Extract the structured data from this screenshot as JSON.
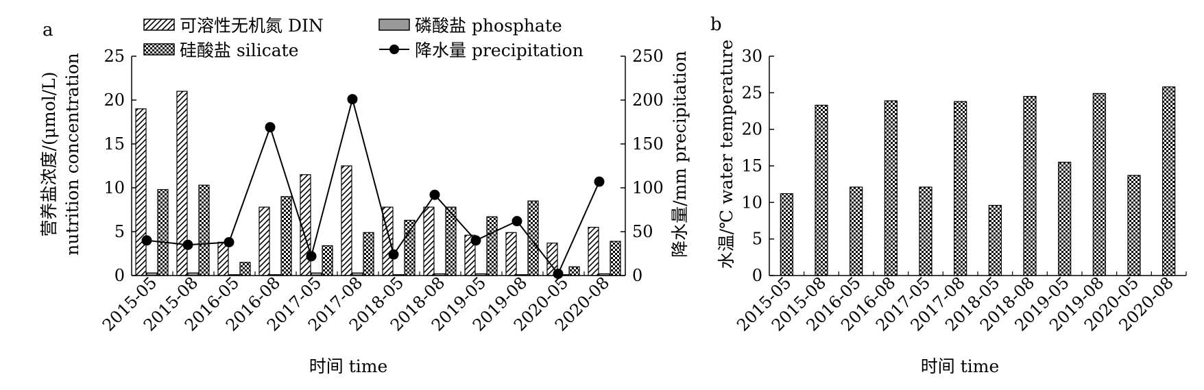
{
  "chart_data": [
    {
      "panel_label": "a",
      "type": "bar",
      "categories": [
        "2015-05",
        "2015-08",
        "2016-05",
        "2016-08",
        "2017-05",
        "2017-08",
        "2018-05",
        "2018-08",
        "2019-05",
        "2019-08",
        "2020-05",
        "2020-08"
      ],
      "xlabel": "时间 time",
      "ylabel_line1": "营养盐浓度/(μmol/L)",
      "ylabel_line2": "nutrition concentration",
      "ylabel_right": "降水量/mm precipitation",
      "ylim": [
        0,
        25
      ],
      "yticks": [
        0,
        5,
        10,
        15,
        20,
        25
      ],
      "ylim_right": [
        0,
        250
      ],
      "yticks_right": [
        0,
        50,
        100,
        150,
        200,
        250
      ],
      "series": [
        {
          "name": "可溶性无机氮 DIN",
          "kind": "bar",
          "pattern": "diagonal-hatch",
          "values": [
            19.0,
            21.0,
            3.8,
            7.8,
            11.5,
            12.5,
            7.8,
            7.8,
            4.6,
            4.9,
            3.7,
            5.5
          ]
        },
        {
          "name": "磷酸盐 phosphate",
          "kind": "bar",
          "pattern": "solid-gray",
          "values": [
            0.3,
            0.3,
            0.1,
            0.1,
            0.3,
            0.3,
            0.1,
            0.2,
            0.2,
            0.1,
            0.1,
            0.2
          ]
        },
        {
          "name": "硅酸盐 silicate",
          "kind": "bar",
          "pattern": "checker",
          "values": [
            9.8,
            10.3,
            1.5,
            9.0,
            3.4,
            4.9,
            6.3,
            7.8,
            6.7,
            8.5,
            1.0,
            3.9
          ]
        },
        {
          "name": "降水量 precipitation",
          "kind": "line",
          "axis": "right",
          "values": [
            40,
            35,
            38,
            169,
            22,
            201,
            24,
            92,
            40,
            62,
            2,
            107
          ]
        }
      ],
      "colors": {
        "phosphate": "#999999",
        "line": "#000000"
      }
    },
    {
      "panel_label": "b",
      "type": "bar",
      "categories": [
        "2015-05",
        "2015-08",
        "2016-05",
        "2016-08",
        "2017-05",
        "2017-08",
        "2018-05",
        "2018-08",
        "2019-05",
        "2019-08",
        "2020-05",
        "2020-08"
      ],
      "xlabel": "时间 time",
      "ylabel": "水温/℃ water temperature",
      "ylim": [
        0,
        30
      ],
      "yticks": [
        0,
        5,
        10,
        15,
        20,
        25,
        30
      ],
      "series": [
        {
          "name": "",
          "kind": "bar",
          "pattern": "checker",
          "values": [
            11.2,
            23.3,
            12.1,
            23.9,
            12.1,
            23.8,
            9.6,
            24.5,
            15.5,
            24.9,
            13.7,
            25.8
          ]
        }
      ]
    }
  ]
}
